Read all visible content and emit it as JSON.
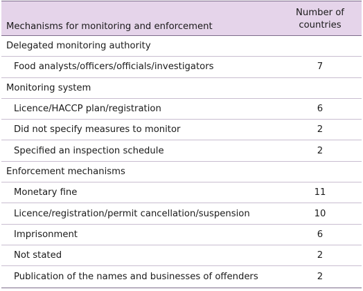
{
  "header": {
    "col1": "Mechanisms for monitoring and enforcement",
    "col2_line1": "Number of",
    "col2_line2": "countries"
  },
  "rows": [
    {
      "type": "section",
      "label": "Delegated monitoring authority",
      "value": ""
    },
    {
      "type": "item",
      "label": "Food analysts/officers/officials/investigators",
      "value": "7"
    },
    {
      "type": "section",
      "label": "Monitoring system",
      "value": ""
    },
    {
      "type": "item",
      "label": "Licence/HACCP plan/registration",
      "value": "6"
    },
    {
      "type": "item",
      "label": "Did not specify measures to monitor",
      "value": "2"
    },
    {
      "type": "item",
      "label": "Specified an inspection schedule",
      "value": "2"
    },
    {
      "type": "section",
      "label": "Enforcement mechanisms",
      "value": ""
    },
    {
      "type": "item",
      "label": "Monetary fine",
      "value": "11"
    },
    {
      "type": "item",
      "label": "Licence/registration/permit cancellation/suspension",
      "value": "10"
    },
    {
      "type": "item",
      "label": "Imprisonment",
      "value": "6"
    },
    {
      "type": "item",
      "label": "Not stated",
      "value": "2"
    },
    {
      "type": "item",
      "label": "Publication of the names and businesses of offenders",
      "value": "2"
    }
  ]
}
